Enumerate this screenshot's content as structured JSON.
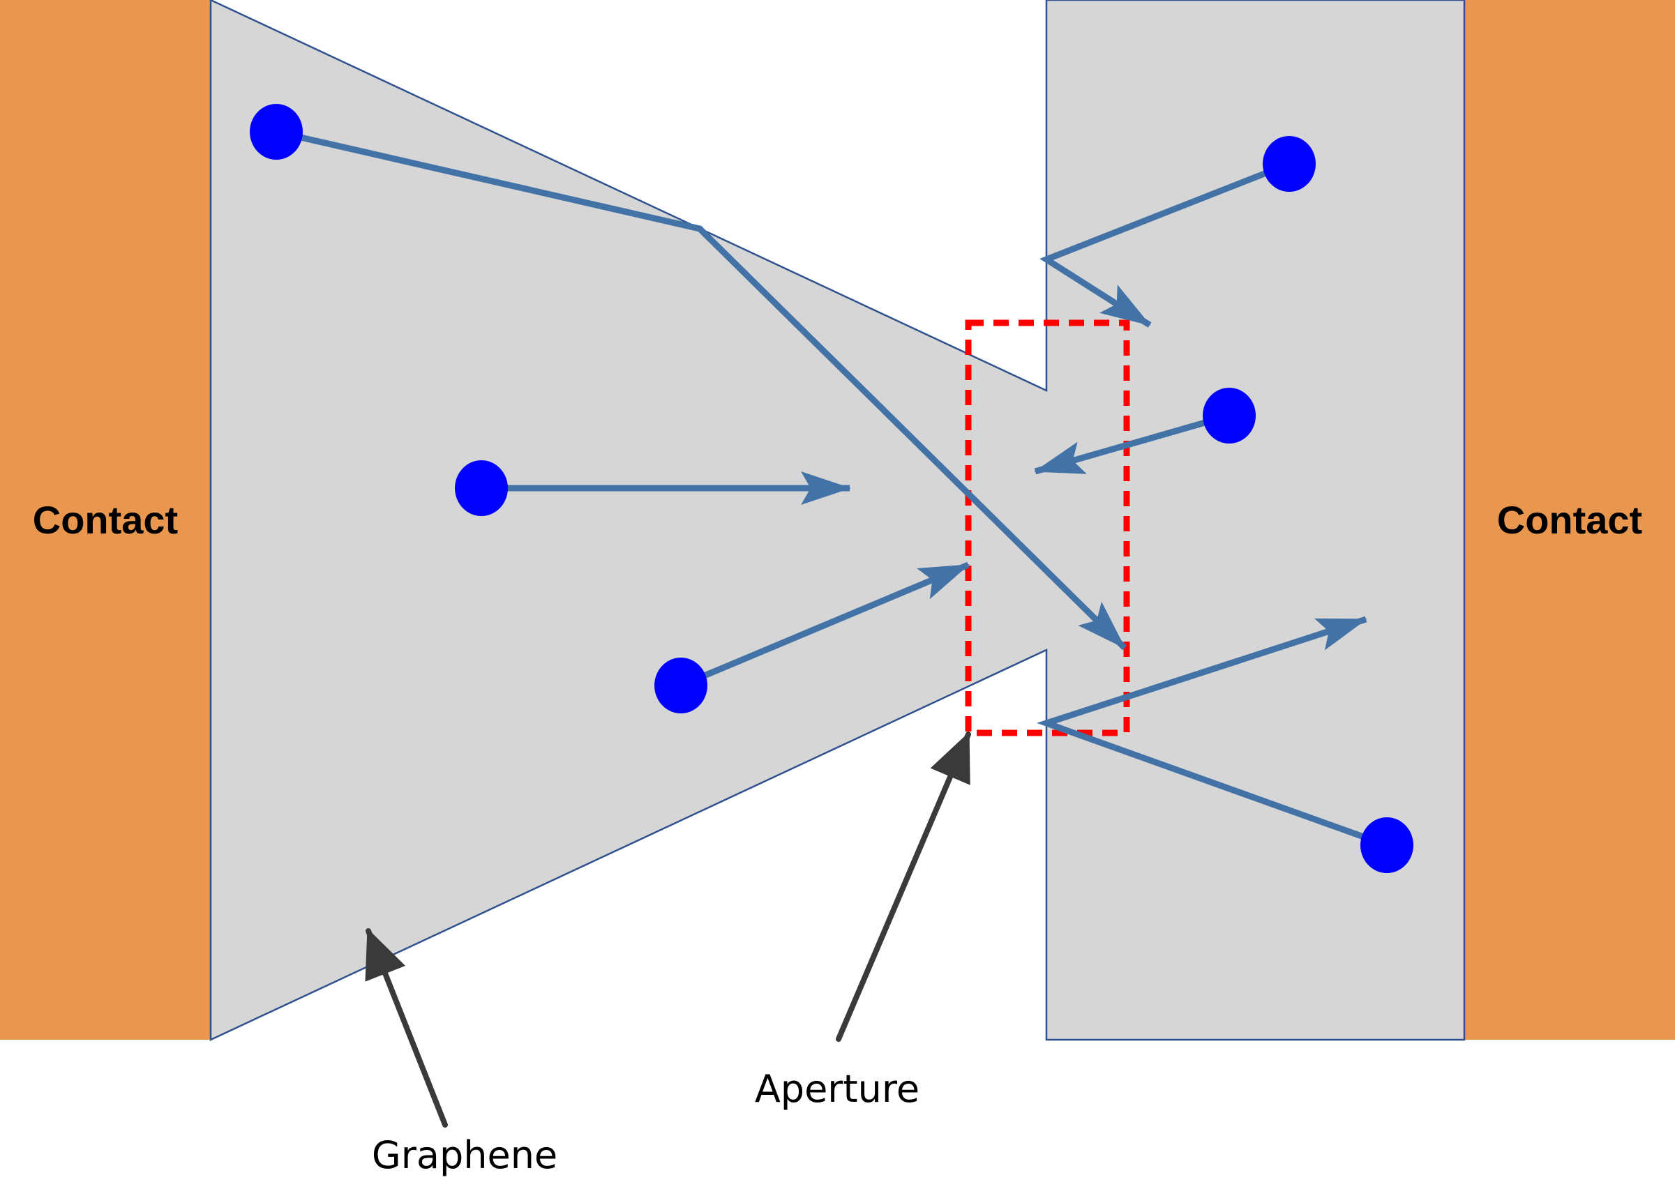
{
  "labels": {
    "contact_left": "Contact",
    "contact_right": "Contact",
    "graphene": "Graphene",
    "aperture": "Aperture"
  },
  "colors": {
    "contact": "#E9974F",
    "graphene": "#D6D6D7",
    "graphene_outline": "#2F528F",
    "trajectory": "#4272A6",
    "electron": "#0000FF",
    "aperture_box": "#FF0000",
    "callout_arrow": "#3A3A3A"
  }
}
